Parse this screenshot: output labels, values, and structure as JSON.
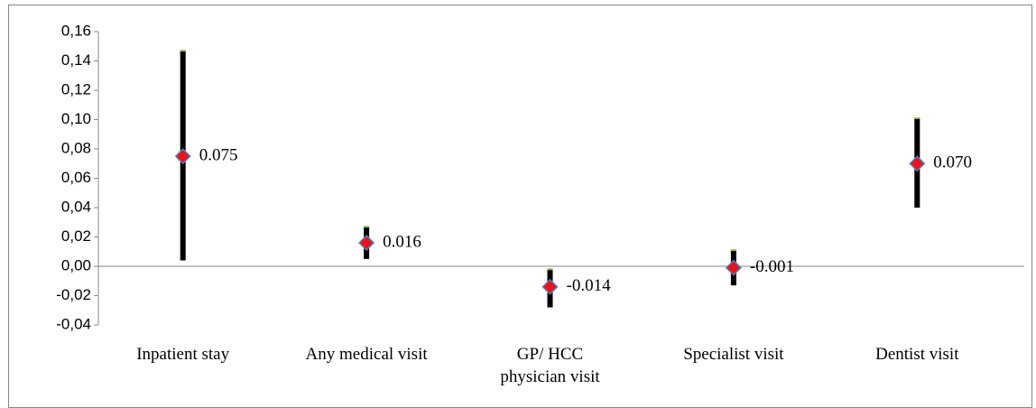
{
  "chart_data": {
    "type": "errorbar",
    "categories": [
      "Inpatient stay",
      "Any medical visit",
      "GP/ HCC physician visit",
      "Specialist  visit",
      "Dentist visit"
    ],
    "values": [
      0.075,
      0.016,
      -0.014,
      -0.001,
      0.07
    ],
    "value_labels": [
      "0.075",
      "0.016",
      "-0.014",
      "-0.001",
      "0.070"
    ],
    "ci_low": [
      0.004,
      0.005,
      -0.028,
      -0.013,
      0.04
    ],
    "ci_high": [
      0.147,
      0.027,
      -0.002,
      0.011,
      0.101
    ],
    "color": "#e8141c",
    "bar_color": "#000000",
    "ylim": [
      -0.04,
      0.16
    ],
    "yticks": [
      {
        "value": -0.04,
        "label": "-0,04"
      },
      {
        "value": -0.02,
        "label": "-0,02"
      },
      {
        "value": 0,
        "label": "0,00"
      },
      {
        "value": 0.02,
        "label": "0,02"
      },
      {
        "value": 0.04,
        "label": "0,04"
      },
      {
        "value": 0.06,
        "label": "0,06"
      },
      {
        "value": 0.08,
        "label": "0,08"
      },
      {
        "value": 0.1,
        "label": "0,10"
      },
      {
        "value": 0.12,
        "label": "0,12"
      },
      {
        "value": 0.14,
        "label": "0,14"
      },
      {
        "value": 0.16,
        "label": "0,16"
      }
    ]
  }
}
